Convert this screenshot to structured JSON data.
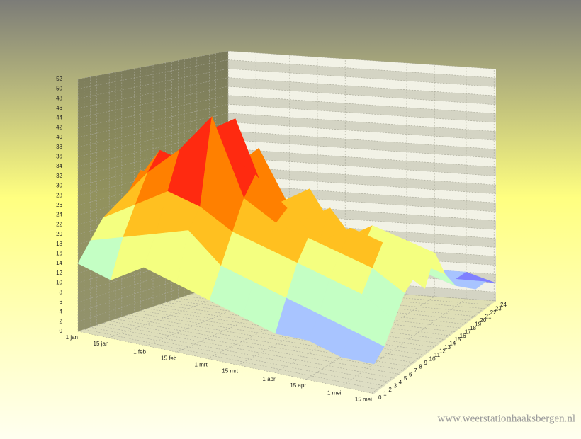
{
  "chart_data": {
    "type": "surface3d",
    "watermark": "www.weerstationhaaksbergen.nl",
    "x": [
      0,
      15,
      30,
      45,
      60,
      75,
      90,
      105,
      120,
      135
    ],
    "z": [
      0,
      2,
      4,
      6,
      8,
      10,
      12,
      14,
      16,
      18,
      20,
      22,
      24
    ],
    "values": [
      [
        14,
        18,
        22,
        24,
        26,
        30,
        24,
        20,
        18,
        22,
        16,
        12,
        10
      ],
      [
        12,
        20,
        26,
        32,
        36,
        30,
        34,
        28,
        24,
        26,
        20,
        14,
        12
      ],
      [
        16,
        22,
        30,
        38,
        34,
        40,
        36,
        30,
        26,
        22,
        18,
        14,
        10
      ],
      [
        14,
        24,
        28,
        46,
        38,
        44,
        32,
        36,
        28,
        24,
        20,
        16,
        12
      ],
      [
        12,
        18,
        24,
        30,
        34,
        28,
        26,
        24,
        20,
        18,
        14,
        12,
        10
      ],
      [
        10,
        16,
        22,
        26,
        28,
        24,
        30,
        22,
        18,
        16,
        12,
        10,
        8
      ],
      [
        8,
        14,
        20,
        24,
        22,
        28,
        20,
        18,
        16,
        14,
        12,
        10,
        8
      ],
      [
        8,
        12,
        18,
        22,
        26,
        20,
        24,
        18,
        14,
        12,
        10,
        8,
        6
      ],
      [
        6,
        10,
        16,
        20,
        24,
        18,
        22,
        16,
        12,
        10,
        8,
        6,
        6
      ],
      [
        6,
        8,
        12,
        16,
        18,
        14,
        20,
        14,
        10,
        8,
        6,
        6,
        4
      ]
    ],
    "xlim": [
      0,
      135
    ],
    "xticks": [
      {
        "value": 0,
        "label": "1 jan"
      },
      {
        "value": 14,
        "label": "15 jan"
      },
      {
        "value": 31,
        "label": "1 feb"
      },
      {
        "value": 45,
        "label": "15 feb"
      },
      {
        "value": 59,
        "label": "1 mrt"
      },
      {
        "value": 73,
        "label": "15 mrt"
      },
      {
        "value": 90,
        "label": "1 apr"
      },
      {
        "value": 104,
        "label": "15 apr"
      },
      {
        "value": 120,
        "label": "1 mei"
      },
      {
        "value": 134,
        "label": "15 mei"
      }
    ],
    "zlim": [
      0,
      24
    ],
    "zticks": [
      0,
      1,
      2,
      3,
      4,
      5,
      6,
      7,
      8,
      9,
      10,
      11,
      12,
      13,
      14,
      15,
      16,
      17,
      18,
      19,
      20,
      21,
      22,
      23,
      24
    ],
    "ylim": [
      0,
      52
    ],
    "yticks": [
      0,
      2,
      4,
      6,
      8,
      10,
      12,
      14,
      16,
      18,
      20,
      22,
      24,
      26,
      28,
      30,
      32,
      34,
      36,
      38,
      40,
      42,
      44,
      46,
      48,
      50,
      52
    ],
    "grid": true,
    "colors": [
      "#8080ff",
      "#a8c4ff",
      "#c4ffc4",
      "#f4ff80",
      "#ffc020",
      "#ff8000",
      "#ff2a10",
      "#c0108c"
    ]
  }
}
